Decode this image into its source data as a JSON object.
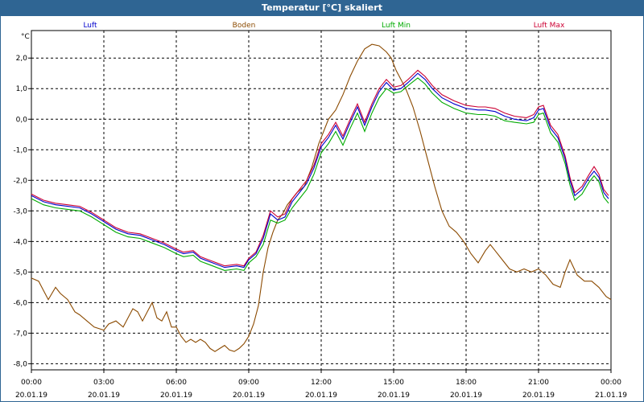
{
  "window": {
    "title": "Temperatur [°C] skaliert"
  },
  "chart_data": {
    "type": "line",
    "title": "Temperatur [°C] skaliert",
    "ylabel": "°C",
    "xlabel": "",
    "ylim": [
      -8.2,
      2.9
    ],
    "xlim": [
      0,
      24
    ],
    "grid": true,
    "legend": [
      "Luft",
      "Boden",
      "Luft Min",
      "Luft Max"
    ],
    "legend_placement": "top",
    "y_ticks": [
      2,
      1,
      0,
      -1,
      -2,
      -3,
      -4,
      -5,
      -6,
      -7,
      -8
    ],
    "y_tick_labels": [
      "2,0",
      "1,0",
      "0,0",
      "-1,0",
      "-2,0",
      "-3,0",
      "-4,0",
      "-5,0",
      "-6,0",
      "-7,0",
      "-8,0"
    ],
    "x_ticks": [
      {
        "x": 0,
        "time": "00:00",
        "date": "20.01.19"
      },
      {
        "x": 3,
        "time": "03:00",
        "date": "20.01.19"
      },
      {
        "x": 6,
        "time": "06:00",
        "date": "20.01.19"
      },
      {
        "x": 9,
        "time": "09:00",
        "date": "20.01.19"
      },
      {
        "x": 12,
        "time": "12:00",
        "date": "20.01.19"
      },
      {
        "x": 15,
        "time": "15:00",
        "date": "20.01.19"
      },
      {
        "x": 18,
        "time": "18:00",
        "date": "20.01.19"
      },
      {
        "x": 21,
        "time": "21:00",
        "date": "20.01.19"
      },
      {
        "x": 24,
        "time": "00:00",
        "date": "21.01.19"
      }
    ],
    "series": [
      {
        "name": "Luft",
        "color": "#0000cc",
        "points": [
          [
            0,
            -2.5
          ],
          [
            0.5,
            -2.7
          ],
          [
            1,
            -2.8
          ],
          [
            1.5,
            -2.85
          ],
          [
            2,
            -2.9
          ],
          [
            2.5,
            -3.1
          ],
          [
            3,
            -3.35
          ],
          [
            3.5,
            -3.6
          ],
          [
            4,
            -3.75
          ],
          [
            4.5,
            -3.8
          ],
          [
            5,
            -3.95
          ],
          [
            5.5,
            -4.1
          ],
          [
            6,
            -4.3
          ],
          [
            6.3,
            -4.4
          ],
          [
            6.7,
            -4.35
          ],
          [
            7,
            -4.55
          ],
          [
            7.5,
            -4.7
          ],
          [
            8,
            -4.85
          ],
          [
            8.5,
            -4.8
          ],
          [
            8.8,
            -4.85
          ],
          [
            9,
            -4.6
          ],
          [
            9.3,
            -4.4
          ],
          [
            9.6,
            -3.9
          ],
          [
            9.9,
            -3.1
          ],
          [
            10.2,
            -3.3
          ],
          [
            10.5,
            -3.2
          ],
          [
            10.8,
            -2.7
          ],
          [
            11.1,
            -2.4
          ],
          [
            11.4,
            -2.1
          ],
          [
            11.7,
            -1.6
          ],
          [
            12,
            -0.9
          ],
          [
            12.3,
            -0.6
          ],
          [
            12.6,
            -0.2
          ],
          [
            12.9,
            -0.65
          ],
          [
            13.2,
            -0.1
          ],
          [
            13.5,
            0.4
          ],
          [
            13.8,
            -0.2
          ],
          [
            14.1,
            0.4
          ],
          [
            14.4,
            0.9
          ],
          [
            14.7,
            1.2
          ],
          [
            15,
            0.95
          ],
          [
            15.3,
            1.0
          ],
          [
            15.6,
            1.2
          ],
          [
            16,
            1.5
          ],
          [
            16.3,
            1.3
          ],
          [
            16.6,
            1.0
          ],
          [
            17,
            0.7
          ],
          [
            17.5,
            0.5
          ],
          [
            18,
            0.35
          ],
          [
            18.5,
            0.3
          ],
          [
            18.8,
            0.3
          ],
          [
            19.2,
            0.25
          ],
          [
            19.6,
            0.1
          ],
          [
            20,
            0.0
          ],
          [
            20.5,
            -0.05
          ],
          [
            20.8,
            0.05
          ],
          [
            21,
            0.3
          ],
          [
            21.2,
            0.35
          ],
          [
            21.5,
            -0.3
          ],
          [
            21.8,
            -0.6
          ],
          [
            22.1,
            -1.3
          ],
          [
            22.3,
            -2.0
          ],
          [
            22.5,
            -2.5
          ],
          [
            22.8,
            -2.3
          ],
          [
            23.1,
            -1.9
          ],
          [
            23.3,
            -1.7
          ],
          [
            23.5,
            -1.9
          ],
          [
            23.7,
            -2.4
          ],
          [
            23.9,
            -2.6
          ]
        ]
      },
      {
        "name": "Boden",
        "color": "#8b4a00",
        "points": [
          [
            0,
            -5.2
          ],
          [
            0.3,
            -5.3
          ],
          [
            0.5,
            -5.6
          ],
          [
            0.7,
            -5.9
          ],
          [
            1,
            -5.5
          ],
          [
            1.2,
            -5.7
          ],
          [
            1.5,
            -5.9
          ],
          [
            1.8,
            -6.3
          ],
          [
            2,
            -6.4
          ],
          [
            2.3,
            -6.6
          ],
          [
            2.6,
            -6.8
          ],
          [
            3,
            -6.9
          ],
          [
            3.2,
            -6.7
          ],
          [
            3.5,
            -6.6
          ],
          [
            3.8,
            -6.8
          ],
          [
            4,
            -6.5
          ],
          [
            4.2,
            -6.2
          ],
          [
            4.4,
            -6.3
          ],
          [
            4.6,
            -6.6
          ],
          [
            4.8,
            -6.3
          ],
          [
            5,
            -6.0
          ],
          [
            5.2,
            -6.5
          ],
          [
            5.4,
            -6.6
          ],
          [
            5.6,
            -6.3
          ],
          [
            5.8,
            -6.8
          ],
          [
            6,
            -6.8
          ],
          [
            6.2,
            -7.1
          ],
          [
            6.4,
            -7.3
          ],
          [
            6.6,
            -7.2
          ],
          [
            6.8,
            -7.3
          ],
          [
            7,
            -7.2
          ],
          [
            7.2,
            -7.3
          ],
          [
            7.4,
            -7.5
          ],
          [
            7.6,
            -7.6
          ],
          [
            7.8,
            -7.5
          ],
          [
            8,
            -7.4
          ],
          [
            8.2,
            -7.55
          ],
          [
            8.4,
            -7.6
          ],
          [
            8.6,
            -7.5
          ],
          [
            8.8,
            -7.35
          ],
          [
            9,
            -7.1
          ],
          [
            9.2,
            -6.7
          ],
          [
            9.4,
            -6.1
          ],
          [
            9.6,
            -5.0
          ],
          [
            9.8,
            -4.2
          ],
          [
            10,
            -3.7
          ],
          [
            10.2,
            -3.3
          ],
          [
            10.4,
            -3.1
          ],
          [
            10.6,
            -2.8
          ],
          [
            10.8,
            -2.6
          ],
          [
            11,
            -2.4
          ],
          [
            11.3,
            -2.2
          ],
          [
            11.6,
            -1.6
          ],
          [
            11.9,
            -0.8
          ],
          [
            12.1,
            -0.4
          ],
          [
            12.3,
            0.0
          ],
          [
            12.6,
            0.3
          ],
          [
            12.9,
            0.8
          ],
          [
            13.2,
            1.4
          ],
          [
            13.5,
            1.9
          ],
          [
            13.8,
            2.3
          ],
          [
            14.1,
            2.45
          ],
          [
            14.4,
            2.4
          ],
          [
            14.7,
            2.2
          ],
          [
            14.9,
            2.0
          ],
          [
            15.1,
            1.6
          ],
          [
            15.3,
            1.3
          ],
          [
            15.5,
            1.0
          ],
          [
            15.8,
            0.4
          ],
          [
            16.1,
            -0.4
          ],
          [
            16.4,
            -1.3
          ],
          [
            16.7,
            -2.2
          ],
          [
            17,
            -3.0
          ],
          [
            17.3,
            -3.5
          ],
          [
            17.6,
            -3.7
          ],
          [
            17.9,
            -4.0
          ],
          [
            18.2,
            -4.4
          ],
          [
            18.5,
            -4.7
          ],
          [
            18.8,
            -4.3
          ],
          [
            19,
            -4.1
          ],
          [
            19.2,
            -4.3
          ],
          [
            19.5,
            -4.6
          ],
          [
            19.8,
            -4.9
          ],
          [
            20.1,
            -5.0
          ],
          [
            20.4,
            -4.9
          ],
          [
            20.7,
            -5.0
          ],
          [
            21,
            -4.9
          ],
          [
            21.3,
            -5.1
          ],
          [
            21.6,
            -5.4
          ],
          [
            21.9,
            -5.5
          ],
          [
            22.1,
            -5.0
          ],
          [
            22.3,
            -4.6
          ],
          [
            22.6,
            -5.1
          ],
          [
            22.9,
            -5.3
          ],
          [
            23.2,
            -5.3
          ],
          [
            23.5,
            -5.5
          ],
          [
            23.8,
            -5.8
          ],
          [
            24,
            -5.9
          ]
        ]
      },
      {
        "name": "Luft Min",
        "color": "#00aa00",
        "points": [
          [
            0,
            -2.6
          ],
          [
            0.5,
            -2.8
          ],
          [
            1,
            -2.9
          ],
          [
            1.5,
            -2.95
          ],
          [
            2,
            -3.0
          ],
          [
            2.5,
            -3.2
          ],
          [
            3,
            -3.45
          ],
          [
            3.5,
            -3.7
          ],
          [
            4,
            -3.85
          ],
          [
            4.5,
            -3.9
          ],
          [
            5,
            -4.05
          ],
          [
            5.5,
            -4.2
          ],
          [
            6,
            -4.4
          ],
          [
            6.3,
            -4.5
          ],
          [
            6.7,
            -4.45
          ],
          [
            7,
            -4.65
          ],
          [
            7.5,
            -4.8
          ],
          [
            8,
            -4.95
          ],
          [
            8.5,
            -4.9
          ],
          [
            8.8,
            -4.95
          ],
          [
            9,
            -4.7
          ],
          [
            9.3,
            -4.5
          ],
          [
            9.6,
            -4.1
          ],
          [
            9.9,
            -3.3
          ],
          [
            10.2,
            -3.4
          ],
          [
            10.5,
            -3.3
          ],
          [
            10.8,
            -2.9
          ],
          [
            11.1,
            -2.6
          ],
          [
            11.4,
            -2.3
          ],
          [
            11.7,
            -1.8
          ],
          [
            12,
            -1.1
          ],
          [
            12.3,
            -0.8
          ],
          [
            12.6,
            -0.4
          ],
          [
            12.9,
            -0.85
          ],
          [
            13.2,
            -0.3
          ],
          [
            13.5,
            0.2
          ],
          [
            13.8,
            -0.4
          ],
          [
            14.1,
            0.2
          ],
          [
            14.4,
            0.7
          ],
          [
            14.7,
            1.0
          ],
          [
            15,
            0.85
          ],
          [
            15.3,
            0.9
          ],
          [
            15.6,
            1.1
          ],
          [
            16,
            1.35
          ],
          [
            16.3,
            1.15
          ],
          [
            16.6,
            0.85
          ],
          [
            17,
            0.55
          ],
          [
            17.5,
            0.35
          ],
          [
            18,
            0.2
          ],
          [
            18.5,
            0.15
          ],
          [
            18.8,
            0.15
          ],
          [
            19.2,
            0.1
          ],
          [
            19.6,
            -0.05
          ],
          [
            20,
            -0.1
          ],
          [
            20.5,
            -0.15
          ],
          [
            20.8,
            -0.1
          ],
          [
            21,
            0.15
          ],
          [
            21.2,
            0.2
          ],
          [
            21.5,
            -0.45
          ],
          [
            21.8,
            -0.75
          ],
          [
            22.1,
            -1.45
          ],
          [
            22.3,
            -2.15
          ],
          [
            22.5,
            -2.65
          ],
          [
            22.8,
            -2.45
          ],
          [
            23.1,
            -2.05
          ],
          [
            23.3,
            -1.85
          ],
          [
            23.5,
            -2.05
          ],
          [
            23.7,
            -2.55
          ],
          [
            23.9,
            -2.75
          ]
        ]
      },
      {
        "name": "Luft Max",
        "color": "#cc0033",
        "points": [
          [
            0,
            -2.45
          ],
          [
            0.5,
            -2.65
          ],
          [
            1,
            -2.75
          ],
          [
            1.5,
            -2.8
          ],
          [
            2,
            -2.85
          ],
          [
            2.5,
            -3.05
          ],
          [
            3,
            -3.3
          ],
          [
            3.5,
            -3.55
          ],
          [
            4,
            -3.7
          ],
          [
            4.5,
            -3.75
          ],
          [
            5,
            -3.9
          ],
          [
            5.5,
            -4.05
          ],
          [
            6,
            -4.25
          ],
          [
            6.3,
            -4.35
          ],
          [
            6.7,
            -4.3
          ],
          [
            7,
            -4.5
          ],
          [
            7.5,
            -4.65
          ],
          [
            8,
            -4.8
          ],
          [
            8.5,
            -4.75
          ],
          [
            8.8,
            -4.8
          ],
          [
            9,
            -4.55
          ],
          [
            9.3,
            -4.35
          ],
          [
            9.6,
            -3.8
          ],
          [
            9.9,
            -3.0
          ],
          [
            10.2,
            -3.2
          ],
          [
            10.5,
            -3.1
          ],
          [
            10.8,
            -2.6
          ],
          [
            11.1,
            -2.3
          ],
          [
            11.4,
            -2.0
          ],
          [
            11.7,
            -1.5
          ],
          [
            12,
            -0.8
          ],
          [
            12.3,
            -0.5
          ],
          [
            12.6,
            -0.1
          ],
          [
            12.9,
            -0.55
          ],
          [
            13.2,
            0.0
          ],
          [
            13.5,
            0.5
          ],
          [
            13.8,
            -0.1
          ],
          [
            14.1,
            0.5
          ],
          [
            14.4,
            1.0
          ],
          [
            14.7,
            1.3
          ],
          [
            15,
            1.05
          ],
          [
            15.3,
            1.1
          ],
          [
            15.6,
            1.3
          ],
          [
            16,
            1.6
          ],
          [
            16.3,
            1.4
          ],
          [
            16.6,
            1.1
          ],
          [
            17,
            0.8
          ],
          [
            17.5,
            0.6
          ],
          [
            18,
            0.45
          ],
          [
            18.5,
            0.4
          ],
          [
            18.8,
            0.4
          ],
          [
            19.2,
            0.35
          ],
          [
            19.6,
            0.2
          ],
          [
            20,
            0.1
          ],
          [
            20.5,
            0.05
          ],
          [
            20.8,
            0.15
          ],
          [
            21,
            0.4
          ],
          [
            21.2,
            0.45
          ],
          [
            21.5,
            -0.2
          ],
          [
            21.8,
            -0.5
          ],
          [
            22.1,
            -1.2
          ],
          [
            22.3,
            -1.9
          ],
          [
            22.5,
            -2.4
          ],
          [
            22.8,
            -2.2
          ],
          [
            23.1,
            -1.8
          ],
          [
            23.3,
            -1.55
          ],
          [
            23.5,
            -1.8
          ],
          [
            23.7,
            -2.3
          ],
          [
            23.9,
            -2.5
          ]
        ]
      }
    ]
  }
}
